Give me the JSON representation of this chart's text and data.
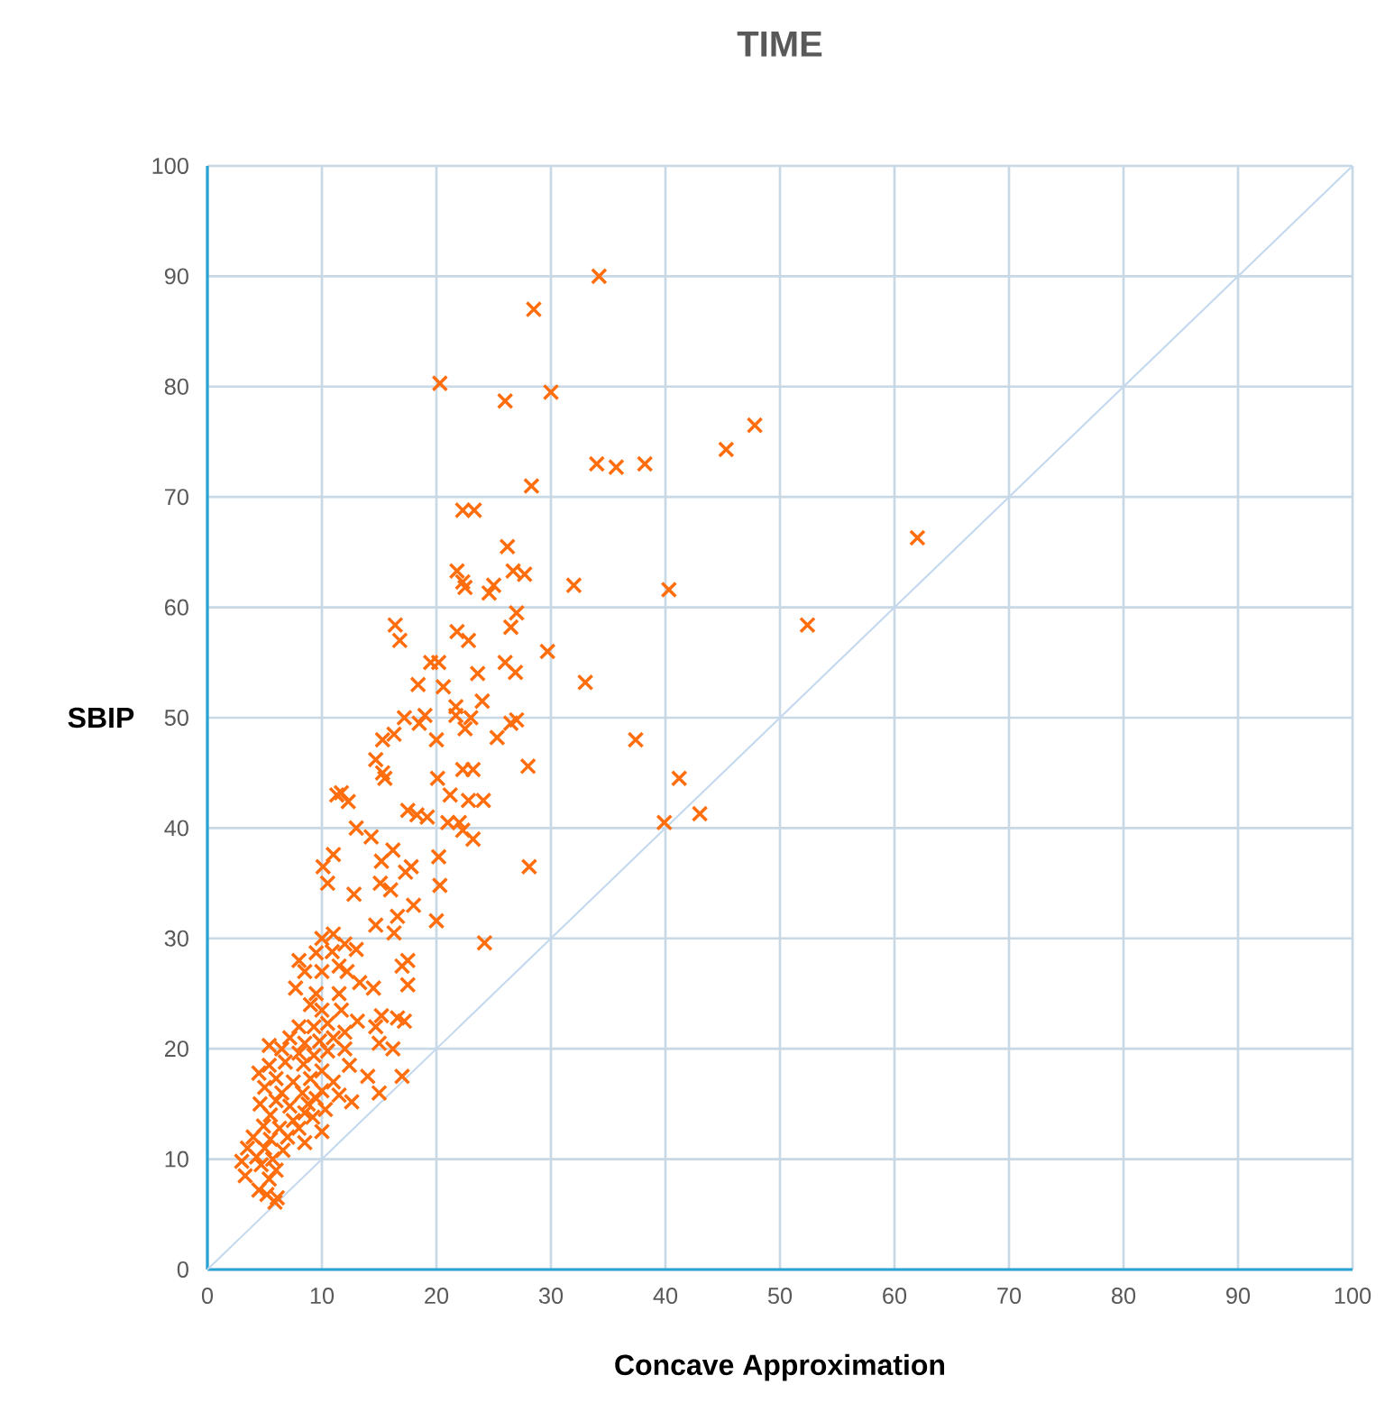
{
  "chart_data": {
    "type": "scatter",
    "title": "TIME",
    "xlabel": "Concave Approximation",
    "ylabel": "SBIP",
    "xlim": [
      0,
      100
    ],
    "ylim": [
      0,
      100
    ],
    "xticks": [
      0,
      10,
      20,
      30,
      40,
      50,
      60,
      70,
      80,
      90,
      100
    ],
    "yticks": [
      0,
      10,
      20,
      30,
      40,
      50,
      60,
      70,
      80,
      90,
      100
    ],
    "grid": true,
    "series": [
      {
        "type": "line",
        "color": "#c5d9ee",
        "x": [
          0,
          100
        ],
        "values": [
          0,
          100
        ]
      },
      {
        "marker": "cross",
        "color": "#ff6d0d",
        "x": [
          34.2,
          28.5,
          20.3,
          30,
          26,
          47.8,
          45.3,
          34,
          35.7,
          38.2,
          28.3,
          62,
          22.3,
          23.3,
          26.2,
          21.8,
          22.3,
          26.7,
          27.7,
          25,
          24.6,
          22.5,
          32,
          40.3,
          52.4,
          16.4,
          16.8,
          21.8,
          22.8,
          27,
          26.5,
          29.7,
          26,
          19.5,
          20.2,
          18.4,
          20.6,
          23.6,
          26.9,
          33,
          21.7,
          21.7,
          23,
          24,
          17.2,
          18.5,
          19,
          15.3,
          16.3,
          20,
          22.5,
          25.3,
          26.5,
          27,
          37.4,
          14.7,
          15.3,
          15.5,
          20.1,
          22.3,
          23.2,
          28,
          41.2,
          11.3,
          11.7,
          12.3,
          21.2,
          22.8,
          24.1,
          18.3,
          17.5,
          19.2,
          21,
          22.3,
          23.2,
          22,
          39.9,
          43,
          13,
          14.3,
          16.2,
          11,
          10.1,
          15.2,
          17.8,
          17.3,
          20.2,
          28.1,
          10.5,
          15.1,
          16,
          20.3,
          12.8,
          18,
          24.2,
          20,
          16.6,
          14.7,
          16.3,
          10,
          11,
          12,
          9.5,
          10.9,
          13,
          8,
          8.5,
          10,
          11.5,
          12.2,
          17.5,
          7.7,
          9.5,
          11.5,
          13.3,
          14.5,
          17,
          17.5,
          9,
          10,
          11.7,
          13.1,
          15.2,
          16.6,
          17.2,
          8,
          9.3,
          10.5,
          12,
          14.7,
          7.2,
          8.5,
          9.8,
          11,
          5.4,
          6.5,
          8,
          9.3,
          10.5,
          12,
          15,
          16.2,
          5.4,
          6.8,
          8.4,
          10,
          12.4,
          17,
          4.5,
          6,
          7.5,
          9,
          11,
          14,
          5,
          6.5,
          8.3,
          10,
          11.5,
          12.6,
          15,
          4.6,
          6,
          7.2,
          8.8,
          10.3,
          5.5,
          7.5,
          9.2,
          4.9,
          6.3,
          8,
          10,
          4,
          5.5,
          7,
          8.5,
          3.5,
          5,
          6.6,
          4.3,
          5.7,
          3,
          4.7,
          6,
          3.3,
          5.4,
          4.5,
          5.2,
          5.9,
          6.1,
          9.5,
          8.5
        ],
        "values": [
          90,
          87,
          80.3,
          79.5,
          78.7,
          76.5,
          74.3,
          73,
          72.7,
          73,
          71,
          66.3,
          68.8,
          68.8,
          65.5,
          63.3,
          62.3,
          63.3,
          63,
          62,
          61.3,
          61.8,
          62,
          61.6,
          58.4,
          58.4,
          57,
          57.8,
          57,
          59.5,
          58.2,
          56,
          55,
          55,
          55,
          53,
          52.8,
          54,
          54.1,
          53.2,
          51,
          50.2,
          50,
          51.5,
          50,
          49.5,
          50.2,
          48,
          48.5,
          48,
          49,
          48.2,
          49.5,
          49.8,
          48,
          46.2,
          45,
          44.5,
          44.5,
          45.3,
          45.3,
          45.6,
          44.5,
          43,
          43.2,
          42.4,
          43,
          42.5,
          42.5,
          41.2,
          41.6,
          41,
          40.5,
          39.8,
          39,
          40.5,
          40.5,
          41.3,
          40,
          39.2,
          38,
          37.6,
          36.5,
          37,
          36.5,
          36,
          37.4,
          36.5,
          35,
          35,
          34.4,
          34.8,
          34,
          33,
          29.6,
          31.6,
          32,
          31.2,
          30.5,
          30,
          30.4,
          29.5,
          28.7,
          28.8,
          29,
          28,
          27,
          27,
          27.5,
          27,
          28,
          25.5,
          25,
          25,
          26,
          25.5,
          27.5,
          25.8,
          24,
          23.5,
          23.5,
          22.5,
          23,
          22.8,
          22.5,
          22,
          22,
          22.3,
          21.5,
          22,
          21,
          20.5,
          20.7,
          21,
          20.3,
          20,
          19.6,
          19.4,
          19.8,
          20,
          20.5,
          20,
          18.5,
          18.8,
          18.6,
          18,
          18.5,
          17.5,
          17.8,
          17.3,
          17,
          17.3,
          17,
          17.5,
          16.5,
          16,
          16,
          16.2,
          15.8,
          15.2,
          16,
          15,
          15.3,
          14.8,
          15,
          14.5,
          14,
          13.5,
          13.8,
          13,
          12.8,
          12.8,
          12.5,
          12,
          11.8,
          12,
          11.5,
          11,
          11,
          10.8,
          10.2,
          10,
          9.8,
          9.5,
          9,
          8.5,
          8.2,
          7.2,
          6.8,
          6.1,
          6.5,
          15.5,
          14.2
        ]
      }
    ]
  }
}
